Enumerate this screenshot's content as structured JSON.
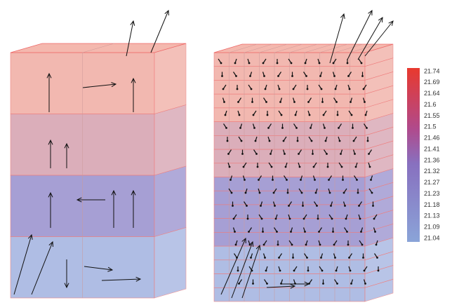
{
  "colorbar": {
    "ticks": [
      "21.74",
      "21.69",
      "21.64",
      "21.6",
      "21.55",
      "21.5",
      "21.46",
      "21.41",
      "21.36",
      "21.32",
      "21.27",
      "21.23",
      "21.18",
      "21.13",
      "21.09",
      "21.04"
    ]
  }
}
